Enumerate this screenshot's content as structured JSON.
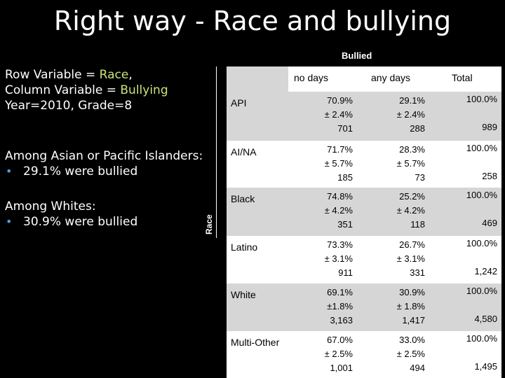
{
  "title": "Right way - Race and bullying",
  "left": {
    "line1_prefix": "Row Variable = ",
    "line1_var": "Race",
    "line1_suffix": ",",
    "line2_prefix": "Column Variable = ",
    "line2_var": "Bullying",
    "line3": "Year=2010, Grade=8",
    "asian_heading": "Among Asian or Pacific Islanders:",
    "asian_bullet": "29.1% were bullied",
    "white_heading": "Among Whites:",
    "white_bullet": "30.9% were bullied"
  },
  "table": {
    "group_header": "Bullied",
    "row_axis_label": "Race",
    "columns": [
      "no days",
      "any days",
      "Total"
    ],
    "rows": [
      {
        "label": "API",
        "no_pct": "70.9%",
        "no_ci": "± 2.4%",
        "no_n": "701",
        "any_pct": "29.1%",
        "any_ci": "± 2.4%",
        "any_n": "288",
        "total_pct": "100.0%",
        "total_n": "989"
      },
      {
        "label": "AI/NA",
        "no_pct": "71.7%",
        "no_ci": "± 5.7%",
        "no_n": "185",
        "any_pct": "28.3%",
        "any_ci": "± 5.7%",
        "any_n": "73",
        "total_pct": "100.0%",
        "total_n": "258"
      },
      {
        "label": "Black",
        "no_pct": "74.8%",
        "no_ci": "± 4.2%",
        "no_n": "351",
        "any_pct": "25.2%",
        "any_ci": "± 4.2%",
        "any_n": "118",
        "total_pct": "100.0%",
        "total_n": "469"
      },
      {
        "label": "Latino",
        "no_pct": "73.3%",
        "no_ci": "± 3.1%",
        "no_n": "911",
        "any_pct": "26.7%",
        "any_ci": "± 3.1%",
        "any_n": "331",
        "total_pct": "100.0%",
        "total_n": "1,242"
      },
      {
        "label": "White",
        "no_pct": "69.1%",
        "no_ci": "±1.8%",
        "no_n": "3,163",
        "any_pct": "30.9%",
        "any_ci": "± 1.8%",
        "any_n": "1,417",
        "total_pct": "100.0%",
        "total_n": "4,580"
      },
      {
        "label": "Multi-Other",
        "no_pct": "67.0%",
        "no_ci": "± 2.5%",
        "no_n": "1,001",
        "any_pct": "33.0%",
        "any_ci": "± 2.5%",
        "any_n": "494",
        "total_pct": "100.0%",
        "total_n": "1,495"
      }
    ]
  }
}
